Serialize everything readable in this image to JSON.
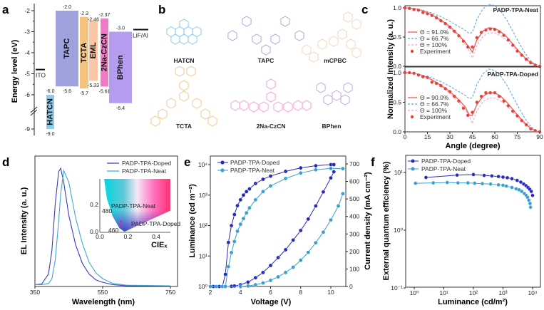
{
  "panel_labels": [
    "a",
    "b",
    "c",
    "d",
    "e",
    "f"
  ],
  "chart_data": [
    {
      "panel": "a",
      "type": "bar",
      "title": "",
      "ylabel": "Energy level (eV)",
      "yticks": [
        "-2",
        "-3",
        "-4",
        "-5",
        "-6",
        "-9"
      ],
      "layers": [
        {
          "name": "HATCN",
          "lumo": -6.0,
          "homo": -9.0,
          "lumo_label": "-6.0",
          "homo_label": "-9.0",
          "color": "#8fcbef"
        },
        {
          "name": "TAPC",
          "lumo": -2.0,
          "homo": -5.6,
          "lumo_label": "-2.0",
          "homo_label": "-5.6",
          "color": "#9fa3dd"
        },
        {
          "name": "TCTA",
          "lumo": -2.3,
          "homo": -5.7,
          "lumo_label": "-2.3",
          "homo_label": "-5.7",
          "color": "#f5c27f"
        },
        {
          "name": "EML",
          "lumo": -2.46,
          "homo": -5.33,
          "lumo_label": "-2.46",
          "homo_label": "-5.33",
          "color": "#fbc6a8"
        },
        {
          "name": "2Na-CzCN",
          "lumo": -2.37,
          "homo": -5.61,
          "lumo_label": "-2.37",
          "homo_label": "-5.61",
          "color": "#f07ac8"
        },
        {
          "name": "BPhen",
          "lumo": -3.0,
          "homo": -6.4,
          "lumo_label": "-3.0",
          "homo_label": "-6.4",
          "color": "#b59cf0"
        }
      ],
      "electrodes": [
        {
          "name": "ITO",
          "level": -4.8
        },
        {
          "name": "LiF/Al",
          "level": -3.0
        }
      ]
    },
    {
      "panel": "b",
      "type": "structures",
      "molecules": [
        {
          "name": "HATCN",
          "color": "#8fc9f0"
        },
        {
          "name": "TAPC",
          "color": "#a8a8e0"
        },
        {
          "name": "mCPBC",
          "color": "#f6d6bc"
        },
        {
          "name": "TCTA",
          "color": "#f5c890"
        },
        {
          "name": "2Na-CzCN",
          "color": "#f5a0d8"
        },
        {
          "name": "BPhen",
          "color": "#c0a8e8"
        }
      ]
    },
    {
      "panel": "c",
      "type": "line",
      "xlabel": "Angle (degree)",
      "ylabel": "Normalized Intensity (a. u.)",
      "xlim": [
        0,
        90
      ],
      "ylim": [
        0,
        1.1
      ],
      "xticks": [
        "0",
        "15",
        "30",
        "45",
        "60",
        "75",
        "90"
      ],
      "yticks": [
        "0.0",
        "0.5",
        "1.0"
      ],
      "x": [
        0,
        6,
        12,
        18,
        24,
        30,
        36,
        40,
        43,
        45,
        48,
        52,
        56,
        60,
        64,
        68,
        72,
        76,
        80,
        84,
        88,
        90
      ],
      "exp_x": [
        0,
        3,
        6,
        9,
        12,
        15,
        18,
        21,
        24,
        27,
        30,
        33,
        36,
        39,
        42,
        45,
        48,
        51,
        54,
        57,
        60,
        63,
        66,
        69,
        72,
        75,
        78,
        81,
        84,
        87,
        90
      ],
      "subplots": [
        {
          "title": "PADP-TPA-Neat",
          "series": [
            {
              "name": "Θ = 91.0%",
              "style": "solid",
              "color": "#f05a4a",
              "values": [
                1.0,
                0.99,
                0.95,
                0.88,
                0.79,
                0.68,
                0.53,
                0.42,
                0.32,
                0.24,
                0.45,
                0.6,
                0.66,
                0.65,
                0.59,
                0.5,
                0.38,
                0.26,
                0.15,
                0.06,
                0.01,
                0
              ]
            },
            {
              "name": "Θ = 66.7%",
              "style": "dashed",
              "color": "#5aa6e0",
              "values": [
                1.0,
                0.99,
                0.96,
                0.91,
                0.85,
                0.77,
                0.68,
                0.62,
                0.56,
                0.58,
                0.8,
                0.98,
                1.06,
                1.04,
                0.94,
                0.79,
                0.6,
                0.41,
                0.23,
                0.09,
                0.01,
                0
              ]
            },
            {
              "name": "Θ = 100%",
              "style": "dashed",
              "color": "#f0a8c8",
              "values": [
                1.0,
                0.99,
                0.95,
                0.87,
                0.77,
                0.65,
                0.5,
                0.38,
                0.26,
                0.14,
                0.35,
                0.51,
                0.57,
                0.57,
                0.52,
                0.44,
                0.34,
                0.23,
                0.13,
                0.05,
                0.01,
                0
              ]
            }
          ],
          "experiment": {
            "name": "Experiment",
            "color": "#e8403a",
            "values": [
              1.0,
              0.99,
              0.97,
              0.96,
              0.92,
              0.9,
              0.87,
              0.83,
              0.78,
              0.73,
              0.67,
              0.6,
              0.52,
              0.43,
              0.33,
              0.33,
              0.49,
              0.58,
              0.62,
              0.64,
              0.63,
              0.59,
              0.53,
              0.45,
              0.36,
              0.26,
              0.19,
              0.12,
              0.06,
              0.02,
              0.0
            ]
          }
        },
        {
          "title": "PADP-TPA-Doped",
          "series": [
            {
              "name": "Θ = 90.0%",
              "style": "solid",
              "color": "#f05a4a",
              "values": [
                1.0,
                0.99,
                0.95,
                0.88,
                0.79,
                0.68,
                0.54,
                0.43,
                0.28,
                0.28,
                0.46,
                0.6,
                0.66,
                0.66,
                0.6,
                0.5,
                0.38,
                0.26,
                0.15,
                0.06,
                0.01,
                0
              ]
            },
            {
              "name": "Θ = 66.7%",
              "style": "dashed",
              "color": "#5aa6e0",
              "values": [
                1.0,
                0.99,
                0.96,
                0.91,
                0.85,
                0.77,
                0.68,
                0.62,
                0.56,
                0.58,
                0.8,
                0.98,
                1.06,
                1.04,
                0.94,
                0.79,
                0.6,
                0.41,
                0.23,
                0.09,
                0.01,
                0
              ]
            },
            {
              "name": "Θ = 100%",
              "style": "dashed",
              "color": "#f0a8c8",
              "values": [
                1.0,
                0.99,
                0.95,
                0.87,
                0.77,
                0.65,
                0.5,
                0.38,
                0.26,
                0.14,
                0.35,
                0.51,
                0.57,
                0.57,
                0.52,
                0.44,
                0.34,
                0.23,
                0.13,
                0.05,
                0.01,
                0
              ]
            }
          ],
          "experiment": {
            "name": "Experiment",
            "color": "#e8403a",
            "values": [
              1.0,
              1.0,
              0.99,
              0.96,
              0.93,
              0.92,
              0.84,
              0.82,
              0.78,
              0.73,
              0.68,
              0.6,
              0.52,
              0.4,
              0.28,
              0.33,
              0.5,
              0.6,
              0.66,
              0.66,
              0.66,
              0.6,
              0.52,
              0.44,
              0.35,
              0.27,
              0.19,
              0.12,
              0.05,
              0.02,
              0.0
            ]
          }
        }
      ]
    },
    {
      "panel": "d",
      "type": "line",
      "xlabel": "Wavelength (nm)",
      "ylabel": "EL Intensity (a. u.)",
      "xlim": [
        350,
        750
      ],
      "ylim": [
        0,
        1
      ],
      "xticks": [
        "350",
        "550",
        "750"
      ],
      "x": [
        350,
        370,
        390,
        400,
        410,
        420,
        426,
        435,
        450,
        470,
        490,
        510,
        530,
        550,
        580,
        620,
        750
      ],
      "series": [
        {
          "name": "PADP-TPA-Doped",
          "color": "#3a3ac0",
          "values": [
            0.01,
            0.015,
            0.1,
            0.3,
            0.7,
            0.97,
            1.0,
            0.88,
            0.6,
            0.35,
            0.19,
            0.1,
            0.05,
            0.03,
            0.01,
            0,
            0
          ]
        },
        {
          "name": "PADP-TPA-Neat",
          "color": "#3ea6d6",
          "values": [
            0.01,
            0.01,
            0.02,
            0.06,
            0.22,
            0.55,
            0.78,
            0.98,
            0.88,
            0.58,
            0.36,
            0.2,
            0.11,
            0.06,
            0.02,
            0.005,
            0
          ]
        }
      ],
      "inset": {
        "type": "scatter",
        "xlabel": "CIEₓ",
        "xticks": [
          "0.0",
          "0.2",
          "0.4"
        ],
        "yticks": [
          "0.0",
          "0.2"
        ],
        "locus_labels": [
          "480",
          "460"
        ],
        "points": [
          {
            "name": "PADP-TPA-Neat",
            "x": 0.15,
            "y": 0.08
          },
          {
            "name": "PADP-TPA-Doped",
            "x": 0.15,
            "y": 0.05
          }
        ]
      }
    },
    {
      "panel": "e",
      "type": "line",
      "xlabel": "Voltage (V)",
      "ylabel": "Luminance (cd m⁻²)",
      "y2label": "Current density (mA cm⁻²)",
      "xlim": [
        2,
        11
      ],
      "ylim": [
        1,
        10000
      ],
      "y2lim": [
        0,
        700
      ],
      "xticks": [
        "2",
        "4",
        "6",
        "8",
        "10"
      ],
      "yticks": [
        "10⁰",
        "10¹",
        "10²",
        "10³",
        "10⁴"
      ],
      "y2ticks": [
        "0",
        "100",
        "200",
        "300",
        "400",
        "500",
        "600",
        "700"
      ],
      "series": [
        {
          "name": "PADP-TPA-Doped",
          "color": "#2a2ab8",
          "luminance": {
            "x": [
              2,
              2.2,
              2.4,
              2.6,
              2.8,
              3.0,
              3.2,
              3.4,
              3.6,
              3.8,
              4.0,
              4.2,
              4.4,
              4.6,
              5.0,
              5.5,
              6.0,
              7.0,
              8.0,
              9.0,
              10.0,
              10.2
            ],
            "y": [
              1,
              1,
              1,
              1,
              1,
              2.5,
              28,
              100,
              230,
              450,
              700,
              1000,
              1300,
              1600,
              2400,
              3300,
              4200,
              6000,
              7800,
              9200,
              10000,
              10000
            ]
          },
          "current_density": {
            "x": [
              2,
              3,
              3.4,
              3.6,
              4.0,
              4.5,
              5.0,
              5.5,
              6.0,
              6.5,
              7.0,
              7.5,
              8.0,
              8.5,
              9.0,
              9.5,
              10.0,
              10.2
            ],
            "y": [
              0,
              0,
              1,
              3,
              10,
              25,
              50,
              80,
              120,
              165,
              210,
              265,
              320,
              385,
              460,
              540,
              620,
              655
            ]
          }
        },
        {
          "name": "PADP-TPA-Neat",
          "color": "#3a9fd0",
          "luminance": {
            "x": [
              2,
              2.4,
              2.8,
              3.0,
              3.2,
              3.4,
              3.6,
              3.8,
              4.0,
              4.2,
              4.4,
              4.6,
              5.0,
              5.5,
              6.0,
              7.0,
              8.0,
              9.0,
              10.0,
              10.8
            ],
            "y": [
              1,
              1,
              1,
              1,
              4.5,
              13,
              30,
              65,
              110,
              170,
              260,
              380,
              700,
              1300,
              2000,
              3500,
              5300,
              6800,
              7500,
              7400
            ]
          },
          "current_density": {
            "x": [
              2,
              3,
              4.0,
              4.5,
              5.0,
              5.5,
              6.0,
              6.5,
              7.0,
              7.5,
              8.0,
              8.5,
              9.0,
              9.5,
              10.0,
              10.5,
              10.8
            ],
            "y": [
              0,
              0,
              0,
              3,
              10,
              20,
              35,
              55,
              80,
              110,
              150,
              195,
              250,
              310,
              380,
              460,
              530
            ]
          }
        }
      ]
    },
    {
      "panel": "f",
      "type": "line",
      "xlabel": "Luminance (cd/m²)",
      "ylabel": "External quantum efficiency (%)",
      "xlim": [
        0.5,
        20000
      ],
      "ylim": [
        0.1,
        20
      ],
      "xticks": [
        "10⁰",
        "10¹",
        "10²",
        "10³",
        "10⁴"
      ],
      "yticks": [
        "10⁻¹",
        "10⁰",
        "10¹"
      ],
      "series": [
        {
          "name": "PADP-TPA-Doped",
          "color": "#2a2ab8",
          "x": [
            2.5,
            28,
            100,
            230,
            420,
            700,
            1000,
            1400,
            2000,
            3000,
            4000,
            5000,
            6000,
            7000,
            8000,
            9000,
            10000
          ],
          "y": [
            8.2,
            9.0,
            9.2,
            8.9,
            8.7,
            8.5,
            8.3,
            8.1,
            7.8,
            7.3,
            6.8,
            6.3,
            5.9,
            5.5,
            5.1,
            4.7,
            4.0
          ]
        },
        {
          "name": "PADP-TPA-Neat",
          "color": "#3a9fd0",
          "x": [
            1.1,
            4.4,
            13,
            30,
            65,
            110,
            200,
            380,
            700,
            1000,
            1300,
            2000,
            2800,
            3500,
            4300,
            5300,
            6100,
            6800,
            7500,
            8200,
            8500
          ],
          "y": [
            6.5,
            6.6,
            6.7,
            6.6,
            6.6,
            6.5,
            6.4,
            6.3,
            6.1,
            6.0,
            5.8,
            5.5,
            5.2,
            5.0,
            4.7,
            4.3,
            4.0,
            3.7,
            3.3,
            2.9,
            2.5
          ]
        }
      ]
    }
  ]
}
